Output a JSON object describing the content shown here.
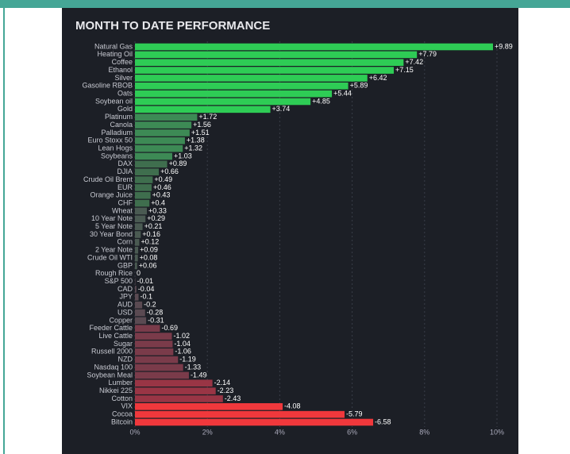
{
  "chart_data": {
    "type": "bar",
    "orientation": "horizontal",
    "title": "MONTH TO DATE PERFORMANCE",
    "categories": [
      "Natural Gas",
      "Heating Oil",
      "Coffee",
      "Ethanol",
      "Silver",
      "Gasoline RBOB",
      "Oats",
      "Soybean oil",
      "Gold",
      "Platinum",
      "Canola",
      "Palladium",
      "Euro Stoxx 50",
      "Lean Hogs",
      "Soybeans",
      "DAX",
      "DJIA",
      "Crude Oil Brent",
      "EUR",
      "Orange Juice",
      "CHF",
      "Wheat",
      "10 Year Note",
      "5 Year Note",
      "30 Year Bond",
      "Corn",
      "2 Year Note",
      "Crude Oil WTI",
      "GBP",
      "Rough Rice",
      "S&P 500",
      "CAD",
      "JPY",
      "AUD",
      "USD",
      "Copper",
      "Feeder Cattle",
      "Live Cattle",
      "Sugar",
      "Russell 2000",
      "NZD",
      "Nasdaq 100",
      "Soybean Meal",
      "Lumber",
      "Nikkei 225",
      "Cotton",
      "VIX",
      "Cocoa",
      "Bitcoin"
    ],
    "values": [
      9.89,
      7.79,
      7.42,
      7.15,
      6.42,
      5.89,
      5.44,
      4.85,
      3.74,
      1.72,
      1.56,
      1.51,
      1.38,
      1.32,
      1.03,
      0.89,
      0.66,
      0.49,
      0.46,
      0.43,
      0.4,
      0.33,
      0.29,
      0.21,
      0.16,
      0.12,
      0.09,
      0.08,
      0.06,
      0,
      -0.01,
      -0.04,
      -0.1,
      -0.2,
      -0.28,
      -0.31,
      -0.69,
      -1.02,
      -1.04,
      -1.06,
      -1.19,
      -1.33,
      -1.49,
      -2.14,
      -2.23,
      -2.43,
      -4.08,
      -5.79,
      -6.58
    ],
    "value_labels": [
      "+9.89",
      "+7.79",
      "+7.42",
      "+7.15",
      "+6.42",
      "+5.89",
      "+5.44",
      "+4.85",
      "+3.74",
      "+1.72",
      "+1.56",
      "+1.51",
      "+1.38",
      "+1.32",
      "+1.03",
      "+0.89",
      "+0.66",
      "+0.49",
      "+0.46",
      "+0.43",
      "+0.4",
      "+0.33",
      "+0.29",
      "+0.21",
      "+0.16",
      "+0.12",
      "+0.09",
      "+0.08",
      "+0.06",
      "0",
      "-0.01",
      "-0.04",
      "-0.1",
      "-0.2",
      "-0.28",
      "-0.31",
      "-0.69",
      "-1.02",
      "-1.04",
      "-1.06",
      "-1.19",
      "-1.33",
      "-1.49",
      "-2.14",
      "-2.23",
      "-2.43",
      "-4.08",
      "-5.79",
      "-6.58"
    ],
    "colors": [
      "#2ecc55",
      "#2ecc55",
      "#2ecc55",
      "#2ecc55",
      "#2ecc55",
      "#2ecc55",
      "#2ecc55",
      "#2ecc55",
      "#2ecc55",
      "#3d8a55",
      "#3d8a55",
      "#3d8a55",
      "#3d8a55",
      "#3d8a55",
      "#3d8a55",
      "#3f6e4e",
      "#3f6e4e",
      "#3f6e4e",
      "#3f6e4e",
      "#3f6e4e",
      "#3f6e4e",
      "#4a5a52",
      "#4a5a52",
      "#4a5a52",
      "#4a5a52",
      "#4a5a52",
      "#4a5a52",
      "#4a5a52",
      "#4a5a52",
      "#555555",
      "#5a4a52",
      "#5a4a52",
      "#5a4a52",
      "#5a4a52",
      "#5a4a52",
      "#5a4a52",
      "#7a3b4a",
      "#7a3b4a",
      "#7a3b4a",
      "#7a3b4a",
      "#7a3b4a",
      "#7a3b4a",
      "#7a3b4a",
      "#993545",
      "#993545",
      "#993545",
      "#f0383c",
      "#f0383c",
      "#f0383c"
    ],
    "xlim": [
      0,
      10
    ],
    "xticks": [
      {
        "value": 0,
        "label": "0%"
      },
      {
        "value": 2,
        "label": "2%"
      },
      {
        "value": 4,
        "label": "4%"
      },
      {
        "value": 6,
        "label": "6%"
      },
      {
        "value": 8,
        "label": "8%"
      },
      {
        "value": 10,
        "label": "10%"
      }
    ],
    "grid": true
  }
}
